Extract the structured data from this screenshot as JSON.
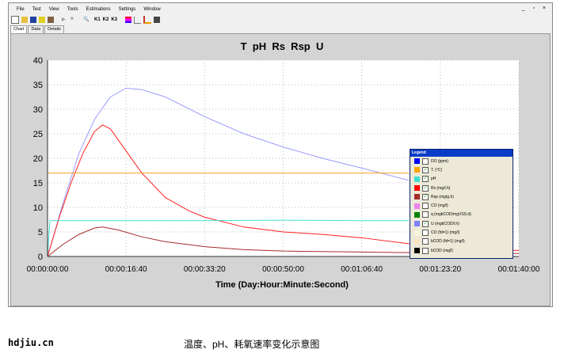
{
  "menu": [
    "File",
    "Test",
    "View",
    "Tools",
    "Estimations",
    "Settings",
    "Window"
  ],
  "window_controls": "_ ▫ ×",
  "toolbar": {
    "k_buttons": [
      "K1",
      "K2",
      "K3"
    ]
  },
  "tabs": [
    {
      "label": "Chart",
      "active": true
    },
    {
      "label": "Data"
    },
    {
      "label": "Details"
    }
  ],
  "chart_data": {
    "type": "line",
    "title": "T  pH  Rs  Rsp  U",
    "xlabel": "Time (Day:Hour:Minute:Second)",
    "ylabel": "",
    "xlim": [
      0,
      6000
    ],
    "ylim": [
      0,
      40
    ],
    "x_ticks": [
      "00:00:00:00",
      "00:00:16:40",
      "00:00:33:20",
      "00:00:50:00",
      "00:01:06:40",
      "00:01:23:20",
      "00:01:40:00"
    ],
    "y_ticks": [
      "0",
      "5",
      "10",
      "15",
      "20",
      "25",
      "30",
      "35",
      "40"
    ],
    "grid": true,
    "x_unit_note": "x values are seconds from start",
    "series": [
      {
        "name": "U (mgbCOD/l.h)",
        "color": "#9a9aff",
        "x": [
          0,
          200,
          400,
          600,
          800,
          1000,
          1200,
          1500,
          2000,
          2500,
          3000,
          3500,
          4000,
          4600
        ],
        "y": [
          0,
          11,
          21,
          28,
          32.5,
          34.3,
          34,
          32.5,
          28.5,
          25,
          22.3,
          20,
          18,
          15.5
        ]
      },
      {
        "name": "Rs (mg/l.h)",
        "color": "#ff2020",
        "x": [
          0,
          150,
          300,
          450,
          600,
          700,
          800,
          1000,
          1200,
          1500,
          1800,
          2000,
          2500,
          3000,
          3500,
          4000,
          4600,
          5200,
          6000
        ],
        "y": [
          0,
          8,
          15,
          21,
          25.5,
          26.8,
          26,
          21.5,
          17,
          12,
          9.3,
          8,
          6,
          5,
          4.5,
          3.8,
          2.6,
          1.8,
          1.2
        ]
      },
      {
        "name": "Rsp (mg/g.h)",
        "color": "#a52a2a",
        "x": [
          0,
          200,
          400,
          600,
          700,
          900,
          1200,
          1500,
          2000,
          2500,
          3000,
          4000,
          5000,
          6000
        ],
        "y": [
          0,
          2.5,
          4.5,
          5.8,
          6,
          5.4,
          4,
          3,
          2,
          1.4,
          1.1,
          0.9,
          0.7,
          0.6
        ]
      },
      {
        "name": "pH",
        "color": "#40e0d0",
        "x": [
          0,
          30,
          60,
          1000,
          2000,
          3000,
          4000,
          4600
        ],
        "y": [
          0,
          7.3,
          7.3,
          7.3,
          7.3,
          7.4,
          7.3,
          7.3
        ]
      },
      {
        "name": "T. (ºC)",
        "color": "#ffa020",
        "x": [
          0,
          4600
        ],
        "y": [
          17,
          17
        ]
      }
    ]
  },
  "legend": {
    "title": "Legend",
    "items": [
      {
        "label": "DO (ppm)",
        "color": "#0000ff",
        "checked": false
      },
      {
        "label": "T. (ºC)",
        "color": "#ffa500",
        "checked": true
      },
      {
        "label": "pH",
        "color": "#40e0d0",
        "checked": true
      },
      {
        "label": "Rs (mg/l.h)",
        "color": "#ff0000",
        "checked": true
      },
      {
        "label": "Rsp (mg/g.h)",
        "color": "#a52a2a",
        "checked": true
      },
      {
        "label": "CO (mg/l)",
        "color": "#ee82ee",
        "checked": false
      },
      {
        "label": "q (mgbCOD/mgVSS.d)",
        "color": "#008000",
        "checked": false
      },
      {
        "label": "U (mgbCOD/l.h)",
        "color": "#8080ff",
        "checked": true
      },
      {
        "label": "CO (fd=1) (mg/l)",
        "color": "#f5f5dc",
        "checked": false
      },
      {
        "label": "bCOD (fd=1) (mg/l)",
        "color": "#ffe4c4",
        "checked": false
      },
      {
        "label": "bCOD (mg/l)",
        "color": "#000000",
        "checked": false
      }
    ]
  },
  "footer": {
    "site": "hdjiu.cn",
    "caption": "温度、pH、耗氧速率变化示意图"
  }
}
